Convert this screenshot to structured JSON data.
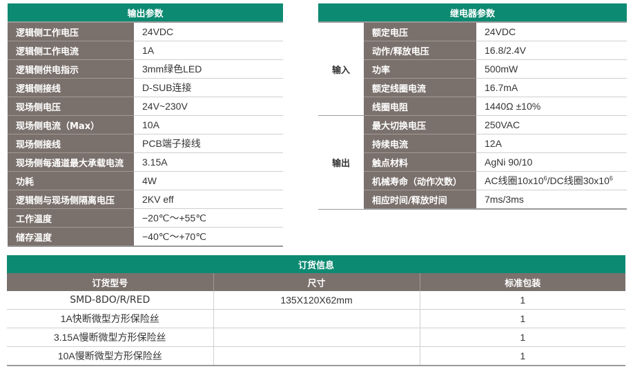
{
  "output_params": {
    "title": "输出参数",
    "rows": [
      [
        "逻辑侧工作电压",
        "24VDC"
      ],
      [
        "逻辑侧工作电流",
        "1A"
      ],
      [
        "逻辑侧供电指示",
        "3mm绿色LED"
      ],
      [
        "逻辑侧接线",
        "D-SUB连接"
      ],
      [
        "现场侧电压",
        "24V~230V"
      ],
      [
        "现场侧电流（Max）",
        "10A"
      ],
      [
        "现场侧接线",
        "PCB端子接线"
      ],
      [
        "现场侧每通道最大承载电流",
        "3.15A"
      ],
      [
        "功耗",
        "4W"
      ],
      [
        "逻辑侧与现场侧隔离电压",
        "2KV eff"
      ],
      [
        "工作温度",
        "−20℃～+55℃"
      ],
      [
        "储存温度",
        "−40℃～+70℃"
      ]
    ]
  },
  "relay_params": {
    "title": "继电器参数",
    "input": {
      "group": "输入",
      "rows": [
        [
          "额定电压",
          "24VDC"
        ],
        [
          "动作/释放电压",
          "16.8/2.4V"
        ],
        [
          "功率",
          "500mW"
        ],
        [
          "额定线圈电流",
          "16.7mA"
        ],
        [
          "线圈电阻",
          "1440Ω ±10%"
        ]
      ]
    },
    "output": {
      "group": "输出",
      "rows": [
        [
          "最大切换电压",
          "250VAC"
        ],
        [
          "持续电流",
          "12A"
        ],
        [
          "触点材料",
          "AgNi 90/10"
        ],
        [
          "机械寿命（动作次数）",
          "AC线圈10x10^6/DC线圈30x10^6"
        ],
        [
          "相应时间/释放时间",
          "7ms/3ms"
        ]
      ]
    },
    "life_parts": {
      "a": "AC线圈10x10",
      "b": "6",
      "c": "/DC线圈30x10",
      "d": "6"
    }
  },
  "order_info": {
    "title": "订货信息",
    "columns": [
      "订货型号",
      "尺寸",
      "标准包装"
    ],
    "rows": [
      [
        "SMD-8DO/R/RED",
        "135X120X62mm",
        "1"
      ],
      [
        "1A快断微型方形保险丝",
        "",
        "1"
      ],
      [
        "3.15A慢断微型方形保险丝",
        "",
        "1"
      ],
      [
        "10A慢断微型方形保险丝",
        "",
        "1"
      ]
    ]
  },
  "colors": {
    "header": "#0d8a72",
    "label": "#7a706c"
  }
}
